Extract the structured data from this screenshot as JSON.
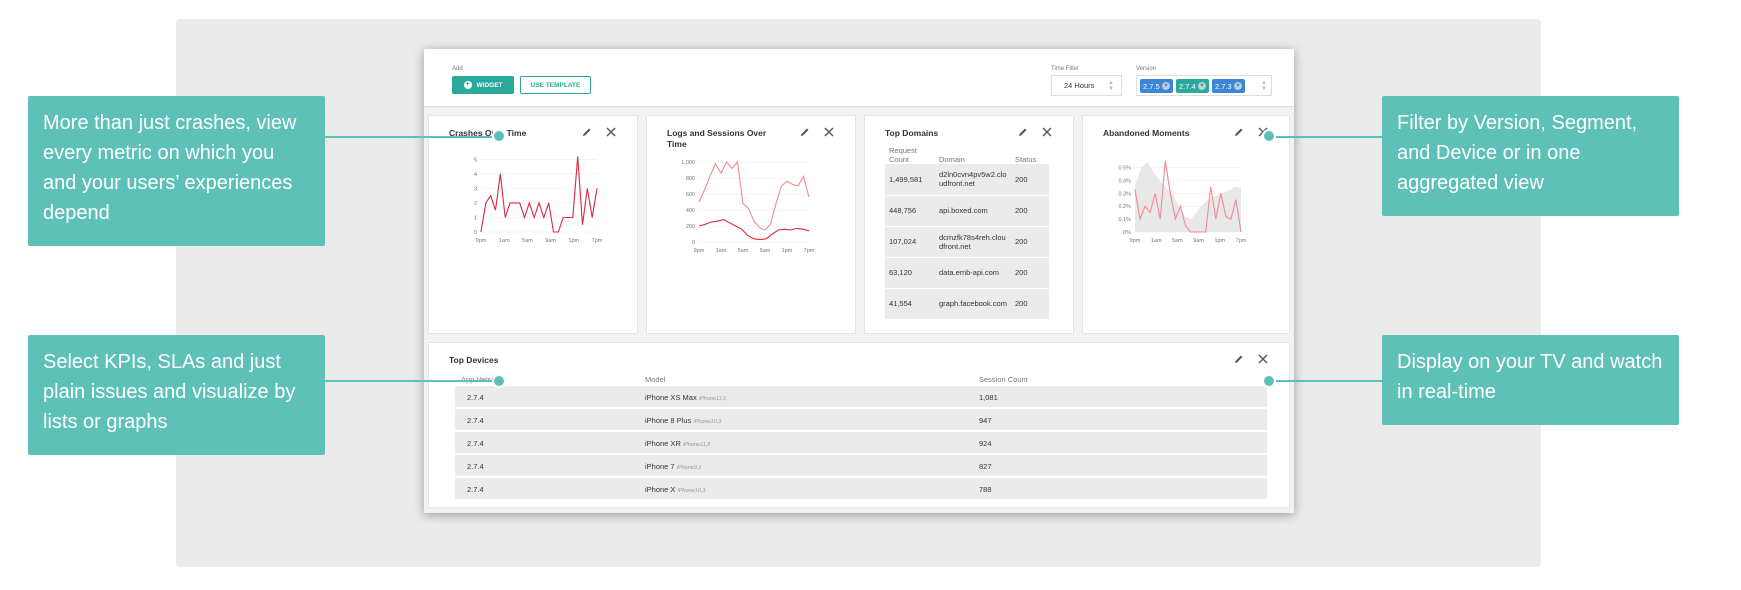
{
  "toolbar": {
    "add_label": "Add",
    "widget_label": "WIDGET",
    "template_label": "USE TEMPLATE",
    "time_filter_label": "Time Filter",
    "time_filter_value": "24 Hours",
    "version_label": "Version",
    "versions": [
      "2.7.5",
      "2.7.4",
      "2.7.3"
    ],
    "version_colors": [
      "#3b86d6",
      "#2aa89a",
      "#3b86d6"
    ]
  },
  "widgets": {
    "crashes": {
      "title": "Crashes Over Time"
    },
    "logs": {
      "title": "Logs and Sessions Over Time"
    },
    "domains": {
      "title": "Top Domains"
    },
    "abandoned": {
      "title": "Abandoned Moments"
    }
  },
  "chart_data": [
    {
      "type": "line",
      "title": "Crashes Over Time",
      "x_ticks": [
        "9pm",
        "1am",
        "5am",
        "9am",
        "1pm",
        "7pm"
      ],
      "y_ticks": [
        "0",
        "1",
        "2",
        "3",
        "4",
        "5"
      ],
      "ylim": [
        0,
        5.5
      ],
      "series": [
        {
          "color": "#d42a3d",
          "values": [
            0,
            2,
            2.5,
            1.5,
            4,
            1,
            2,
            2,
            2,
            1,
            2,
            1,
            2,
            1,
            2,
            0,
            0,
            1,
            1,
            1,
            5.2,
            0.5,
            3,
            1,
            3
          ]
        }
      ]
    },
    {
      "type": "line",
      "title": "Logs and Sessions Over Time",
      "x_ticks": [
        "9pm",
        "1am",
        "5am",
        "9am",
        "1pm",
        "7pm"
      ],
      "y_ticks": [
        "0",
        "200",
        "400",
        "600",
        "800",
        "1,000"
      ],
      "ylim": [
        0,
        1000
      ],
      "series": [
        {
          "color": "#f08a93",
          "values": [
            500,
            650,
            820,
            980,
            860,
            1000,
            920,
            1000,
            480,
            420,
            260,
            180,
            150,
            220,
            480,
            700,
            760,
            720,
            700,
            820,
            560
          ]
        },
        {
          "color": "#d42a3d",
          "values": [
            200,
            220,
            250,
            260,
            280,
            240,
            200,
            160,
            80,
            40,
            30,
            40,
            100,
            150,
            160,
            150,
            170,
            160,
            140
          ]
        }
      ]
    },
    {
      "type": "area",
      "title": "Abandoned Moments",
      "x_ticks": [
        "9pm",
        "1am",
        "5am",
        "9am",
        "1pm",
        "7pm"
      ],
      "y_ticks": [
        "0%",
        "0.1%",
        "0.2%",
        "0.3%",
        "0.4%",
        "0.5%"
      ],
      "ylim": [
        0,
        0.55
      ],
      "series": [
        {
          "color": "#e8e8e8",
          "values": [
            0.36,
            0.5,
            0.54,
            0.46,
            0.4,
            0.34,
            0.3,
            0.2,
            0.12,
            0.1,
            0.16,
            0.22,
            0.26,
            0.28,
            0.3,
            0.32,
            0.35,
            0.34
          ]
        },
        {
          "color": "#f08a93",
          "values": [
            0.33,
            0.1,
            0.2,
            0.15,
            0.3,
            0.1,
            0.55,
            0.3,
            0.1,
            0.2,
            0.05,
            0.0,
            0.0,
            0.0,
            0.0,
            0.35,
            0.1,
            0.3,
            0.12,
            0.1,
            0.25,
            0.0
          ]
        }
      ]
    }
  ],
  "top_domains": {
    "headers": [
      "Request Count",
      "Domain",
      "Status"
    ],
    "rows": [
      [
        "1,499,581",
        "d2ln0cvn4pv5w2.cloudfront.net",
        "200"
      ],
      [
        "448,756",
        "api.boxed.com",
        "200"
      ],
      [
        "107,024",
        "dcmzfk78s4reh.cloudfront.net",
        "200"
      ],
      [
        "63,120",
        "data.emb-api.com",
        "200"
      ],
      [
        "41,554",
        "graph.facebook.com",
        "200"
      ]
    ]
  },
  "top_devices": {
    "title": "Top Devices",
    "headers": [
      "App Version",
      "Model",
      "Session Count"
    ],
    "rows": [
      {
        "version": "2.7.4",
        "model": "iPhone XS Max",
        "code": "iPhone11,6",
        "count": "1,081"
      },
      {
        "version": "2.7.4",
        "model": "iPhone 8 Plus",
        "code": "iPhone10,3",
        "count": "947"
      },
      {
        "version": "2.7.4",
        "model": "iPhone XR",
        "code": "iPhone11,8",
        "count": "924"
      },
      {
        "version": "2.7.4",
        "model": "iPhone 7",
        "code": "iPhone9,1",
        "count": "827"
      },
      {
        "version": "2.7.4",
        "model": "iPhone X",
        "code": "iPhone10,3",
        "count": "788"
      }
    ]
  },
  "callouts": {
    "top_left": "More than just crashes, view every metric on which you and your users’ experiences depend",
    "bottom_left": "Select KPIs, SLAs and just plain issues and visualize by lists or graphs",
    "top_right": "Filter by Version, Segment, and Device or in one aggregated view",
    "bottom_right": "Display on your TV and watch in real-time"
  }
}
